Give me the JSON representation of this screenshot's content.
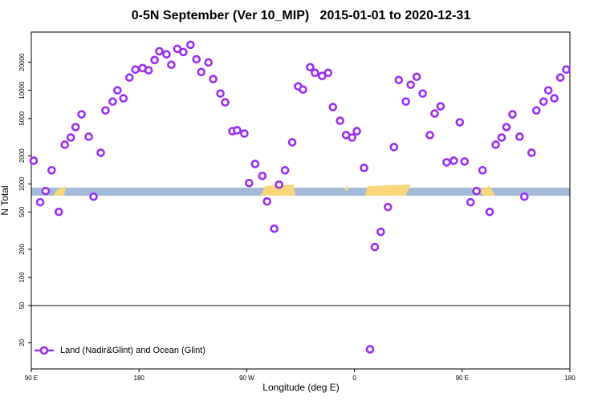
{
  "chart_data": {
    "type": "scatter",
    "title": "0-5N September (Ver 10_MIP)   2015-01-01 to 2020-12-31",
    "x_label": "Longitude (deg E)",
    "y_label": "N Total",
    "log_y": true,
    "legend_position": "lower left",
    "xlim": [
      90,
      540
    ],
    "ylim": [
      10.5,
      42000
    ],
    "xticks": [
      {
        "value": 90,
        "label": "90 E"
      },
      {
        "value": 180,
        "label": "180"
      },
      {
        "value": 270,
        "label": "90 W"
      },
      {
        "value": 360,
        "label": "0"
      },
      {
        "value": 450,
        "label": "90 E"
      },
      {
        "value": 540,
        "label": "180"
      }
    ],
    "yticks": [
      20,
      50,
      100,
      200,
      500,
      1000,
      2000,
      5000,
      10000,
      20000
    ],
    "hline": 50,
    "series": [
      {
        "name": "Land (Nadir&Glint) and Ocean (Glint)",
        "color": "#9b2ff0",
        "x": [
          92,
          97.4,
          102,
          107,
          113,
          118,
          123,
          127,
          132,
          138,
          142,
          148,
          152,
          158,
          162,
          167,
          172,
          177,
          183,
          188,
          193,
          197,
          203,
          207,
          212,
          217,
          223,
          228,
          232,
          238,
          242,
          248,
          252,
          258,
          262,
          268,
          272,
          277,
          283,
          287,
          293,
          297,
          302,
          308,
          313,
          317,
          323,
          327,
          333,
          338,
          342,
          348,
          353,
          358,
          362,
          368,
          373,
          377,
          382,
          388,
          393,
          397,
          403,
          407,
          412,
          417,
          423,
          427,
          432,
          437,
          443,
          448,
          452,
          457,
          462,
          467,
          473,
          478,
          483,
          487,
          492,
          498,
          502,
          508,
          512,
          518,
          522,
          527,
          532,
          537
        ],
        "values": [
          1770,
          636,
          838,
          1397,
          502,
          2623,
          3130,
          4045,
          5540,
          3195,
          730,
          2155,
          6110,
          7590,
          10000,
          8220,
          13700,
          16700,
          17300,
          16400,
          21100,
          26200,
          24300,
          18800,
          27800,
          25700,
          30700,
          21500,
          15700,
          19900,
          13200,
          9250,
          7450,
          3660,
          3740,
          3450,
          1020,
          1635,
          1217,
          649,
          332,
          980,
          1397,
          2782,
          11040,
          10200,
          17700,
          15400,
          14250,
          15400,
          6620,
          4735,
          3320,
          3130,
          3660,
          1483,
          17,
          211,
          307,
          565,
          2473,
          12900,
          7590,
          11480,
          13970,
          9250,
          3320,
          5650,
          6750,
          1700,
          1770,
          4550,
          1735,
          636,
          838,
          1397,
          502,
          2623,
          3130,
          4045,
          5540,
          3195,
          730,
          2155,
          6110,
          7590,
          10000,
          8220,
          13700,
          16700
        ]
      }
    ]
  }
}
